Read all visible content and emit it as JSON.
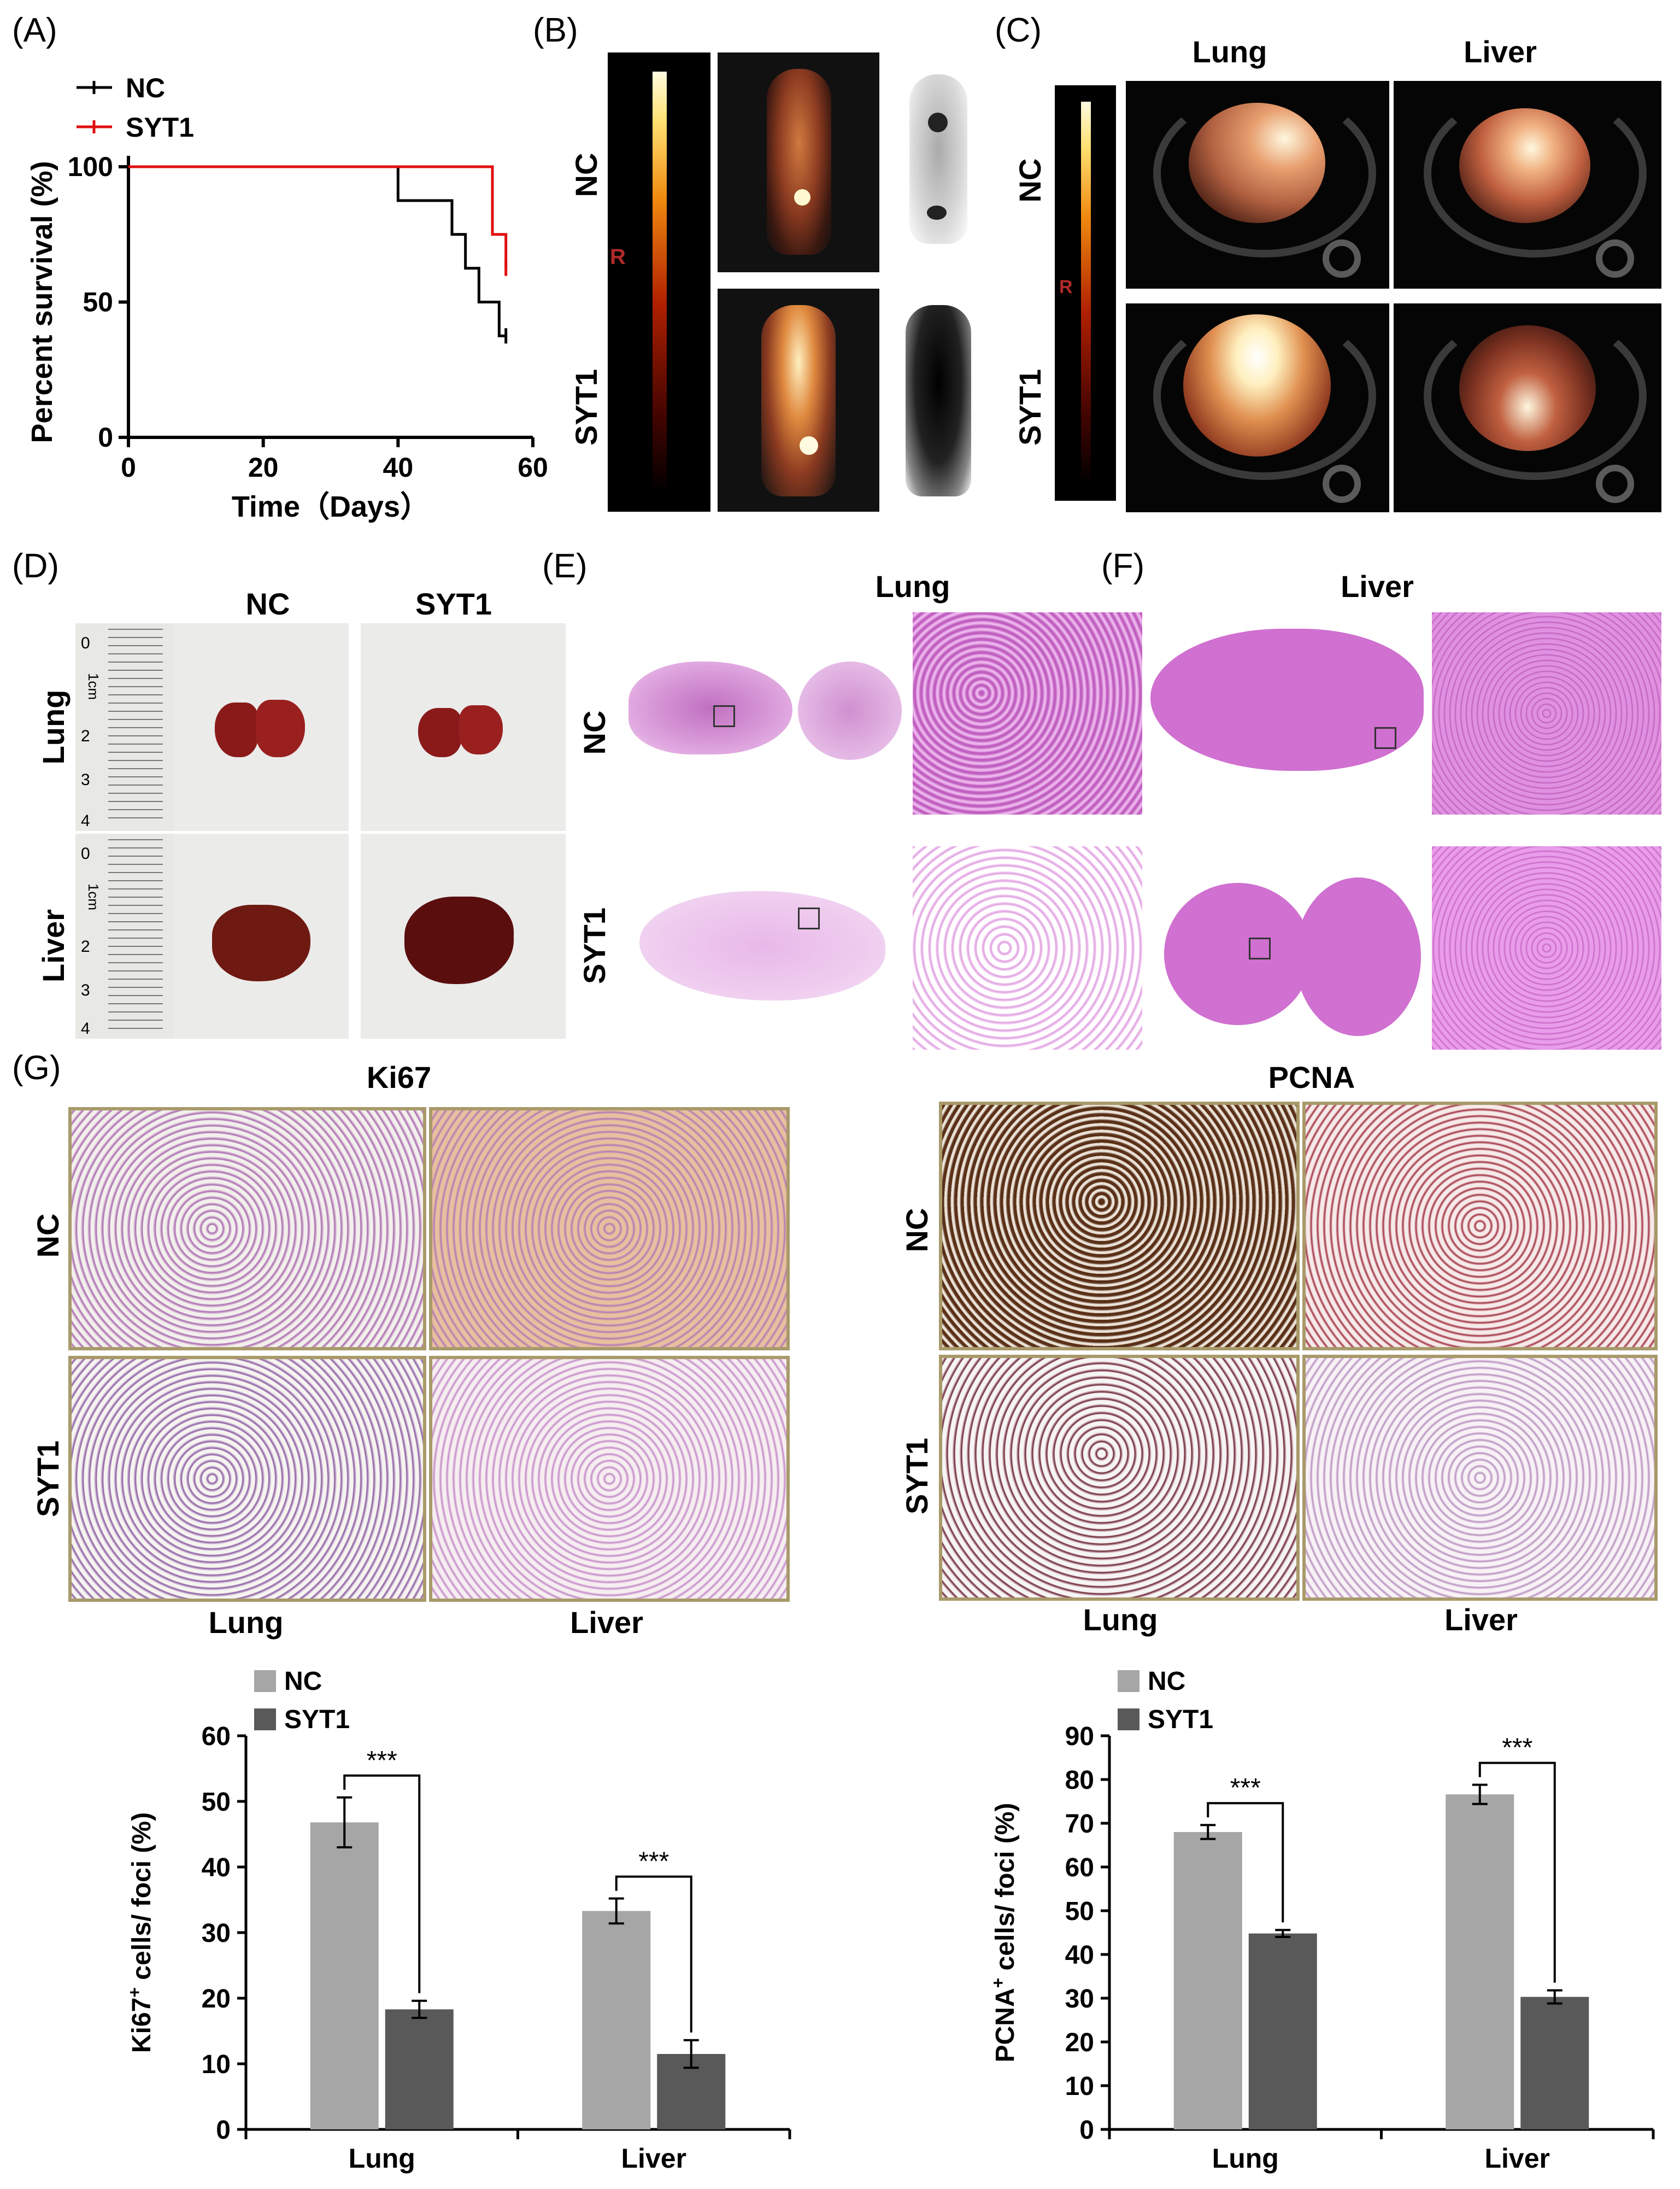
{
  "panels": {
    "A": "(A)",
    "B": "(B)",
    "C": "(C)",
    "D": "(D)",
    "E": "(E)",
    "F": "(F)",
    "G": "(G)"
  },
  "groups": {
    "nc": "NC",
    "syt1": "SYT1"
  },
  "organs": {
    "lung": "Lung",
    "liver": "Liver"
  },
  "stains": {
    "ki67": "Ki67",
    "pcna": "PCNA"
  },
  "imaging": {
    "orientation_mark": "R"
  },
  "ruler": {
    "unit": "1cm",
    "ticks": [
      "0",
      "1",
      "2",
      "3",
      "4"
    ]
  },
  "colors": {
    "nc_line": "#000000",
    "syt1_line": "#e01010",
    "nc_bar": "#a6a6a6",
    "syt1_bar": "#595959"
  },
  "chart_data": [
    {
      "type": "line",
      "subtype": "kaplan-meier",
      "xlabel": "Time（Days）",
      "ylabel": "Percent survival (%)",
      "xlim": [
        0,
        60
      ],
      "ylim": [
        0,
        100
      ],
      "xticks": [
        "0",
        "20",
        "40",
        "60"
      ],
      "yticks": [
        "0",
        "50",
        "100"
      ],
      "legend_position": "top-left",
      "series": [
        {
          "name": "NC",
          "steps": [
            [
              0,
              100
            ],
            [
              40,
              100
            ],
            [
              40,
              87.5
            ],
            [
              48,
              87.5
            ],
            [
              48,
              75
            ],
            [
              50,
              75
            ],
            [
              50,
              62.5
            ],
            [
              52,
              62.5
            ],
            [
              52,
              50
            ],
            [
              55,
              50
            ],
            [
              55,
              37.5
            ],
            [
              56,
              37.5
            ]
          ]
        },
        {
          "name": "SYT1",
          "steps": [
            [
              0,
              100
            ],
            [
              54,
              100
            ],
            [
              54,
              75
            ],
            [
              56,
              75
            ],
            [
              56,
              62.5
            ]
          ]
        }
      ]
    },
    {
      "type": "bar",
      "categories": [
        "Lung",
        "Liver"
      ],
      "ylabel_main": "Ki67",
      "ylabel_sup": "+",
      "ylabel_rest": " cells/ foci (%)",
      "ylim": [
        0,
        60
      ],
      "yticks": [
        "0",
        "10",
        "20",
        "30",
        "40",
        "50",
        "60"
      ],
      "legend_position": "top-left",
      "series": [
        {
          "name": "NC",
          "values": [
            46.8,
            33.3
          ],
          "errors": [
            3.8,
            1.9
          ]
        },
        {
          "name": "SYT1",
          "values": [
            18.3,
            11.5
          ],
          "errors": [
            1.3,
            2.1
          ]
        }
      ],
      "significance": [
        "***",
        "***"
      ]
    },
    {
      "type": "bar",
      "categories": [
        "Lung",
        "Liver"
      ],
      "ylabel_main": "PCNA",
      "ylabel_sup": "+",
      "ylabel_rest": " cells/ foci (%)",
      "ylim": [
        0,
        90
      ],
      "yticks": [
        "0",
        "10",
        "20",
        "30",
        "40",
        "50",
        "60",
        "70",
        "80",
        "90"
      ],
      "legend_position": "top-left",
      "series": [
        {
          "name": "NC",
          "values": [
            68.0,
            76.6
          ],
          "errors": [
            1.6,
            2.2
          ]
        },
        {
          "name": "SYT1",
          "values": [
            44.8,
            30.3
          ],
          "errors": [
            0.8,
            1.5
          ]
        }
      ],
      "significance": [
        "***",
        "***"
      ]
    }
  ]
}
